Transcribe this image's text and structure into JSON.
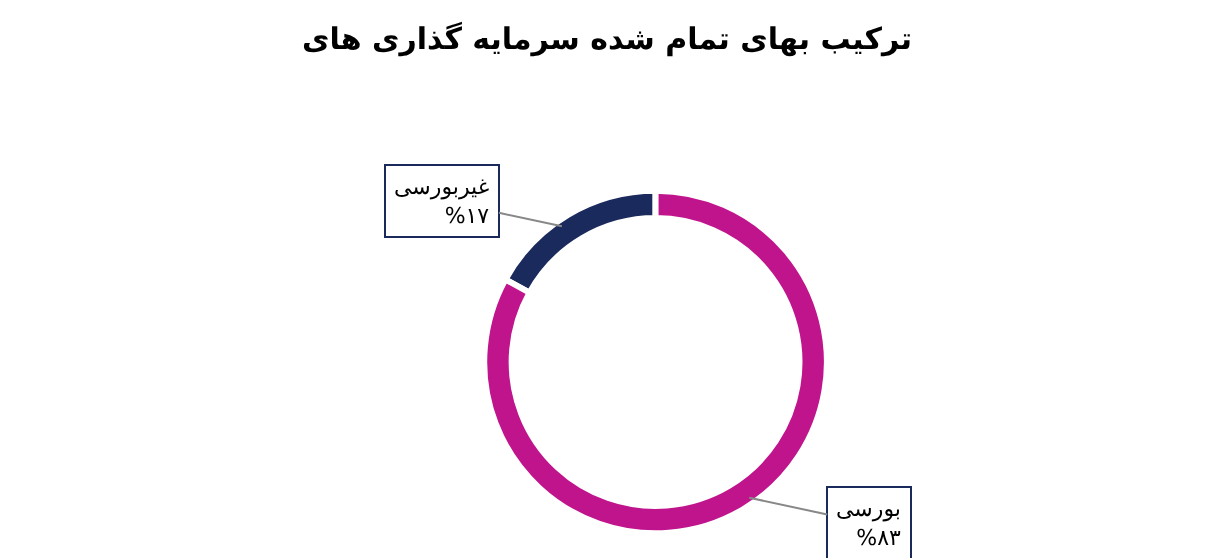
{
  "chart_data": {
    "type": "donut",
    "title": "ترکیب بهای تمام شده سرمایه گذاری های",
    "categories": [
      "غیربورسی",
      "بورسی"
    ],
    "values": [
      17,
      83
    ],
    "colors": [
      "#1b2a5c",
      "#c0148c"
    ],
    "value_labels": [
      "%۱۷",
      "%۸۳"
    ],
    "legend": false
  }
}
